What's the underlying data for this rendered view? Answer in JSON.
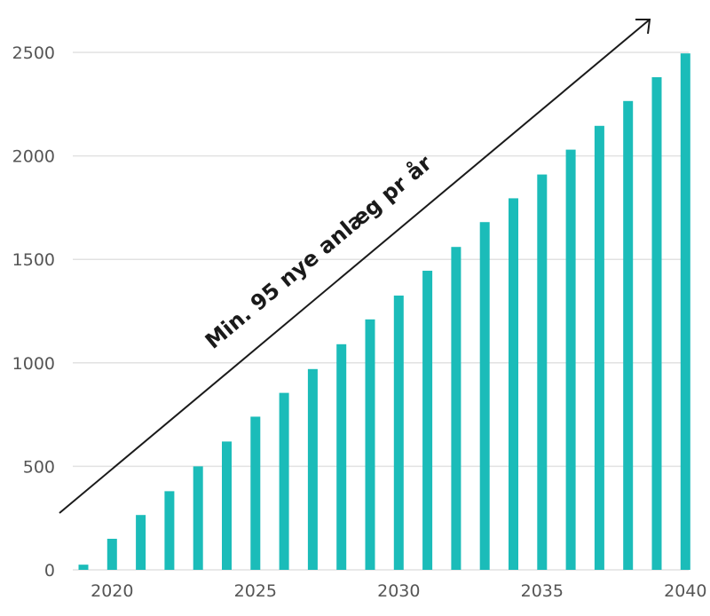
{
  "chart_data": {
    "type": "bar",
    "title": "",
    "xlabel": "",
    "ylabel": "",
    "categories": [
      "2019",
      "2020",
      "2021",
      "2022",
      "2023",
      "2024",
      "2025",
      "2026",
      "2027",
      "2028",
      "2029",
      "2030",
      "2031",
      "2032",
      "2033",
      "2034",
      "2035",
      "2036",
      "2037",
      "2038",
      "2039",
      "2040"
    ],
    "values": [
      25,
      150,
      265,
      380,
      500,
      620,
      740,
      855,
      970,
      1090,
      1210,
      1325,
      1445,
      1560,
      1680,
      1795,
      1910,
      2030,
      2145,
      2265,
      2380,
      2495
    ],
    "ylim": [
      0,
      2500
    ],
    "yticks": [
      0,
      500,
      1000,
      1500,
      2000,
      2500
    ],
    "ytick_labels": [
      "0",
      "500",
      "1000",
      "1500",
      "2000",
      "2500"
    ],
    "xtick_labels": [
      "2020",
      "2025",
      "2030",
      "2035",
      "2040"
    ],
    "xtick_positions": [
      "2020",
      "2025",
      "2030",
      "2035",
      "2040"
    ],
    "grid": true,
    "legend": "none",
    "annotation": "Min. 95 nye anlæg pr år",
    "colors": {
      "bar": "#1bbcb9",
      "grid": "#e2e2e2",
      "tick_text": "#555555",
      "arrow": "#1a1a1a"
    }
  }
}
